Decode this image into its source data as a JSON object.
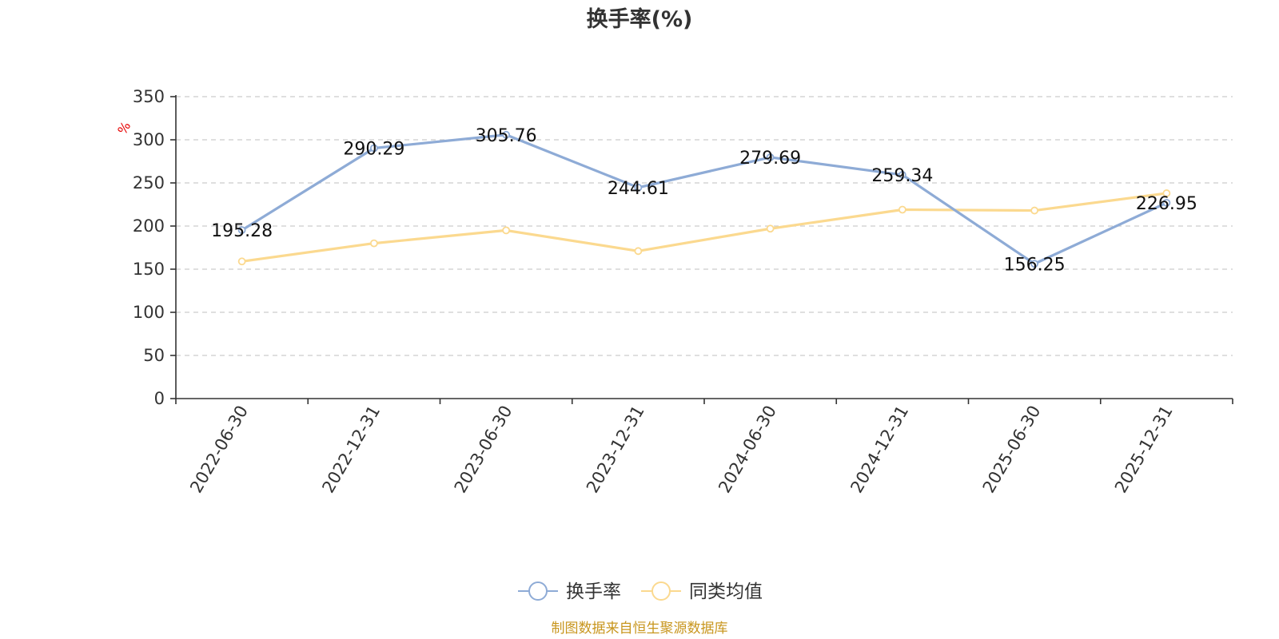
{
  "chart_data": {
    "type": "line",
    "title": "换手率(%)",
    "y_unit_label": "%",
    "categories": [
      "2022-06-30",
      "2022-12-31",
      "2023-06-30",
      "2023-12-31",
      "2024-06-30",
      "2024-12-31",
      "2025-06-30",
      "2025-12-31"
    ],
    "ylim": [
      0,
      350
    ],
    "yticks": [
      0,
      50,
      100,
      150,
      200,
      250,
      300,
      350
    ],
    "grid": true,
    "legend_position": "bottom",
    "series": [
      {
        "name": "换手率",
        "color": "#8eabd6",
        "values": [
          195.28,
          290.29,
          305.76,
          244.61,
          279.69,
          259.34,
          156.25,
          226.95
        ],
        "labels": [
          "195.28",
          "290.29",
          "305.76",
          "244.61",
          "279.69",
          "259.34",
          "156.25",
          "226.95"
        ]
      },
      {
        "name": "同类均值",
        "color": "#fbd98f",
        "values": [
          159,
          180,
          195,
          171,
          197,
          219,
          218,
          238
        ]
      }
    ]
  },
  "footer": "制图数据来自恒生聚源数据库"
}
